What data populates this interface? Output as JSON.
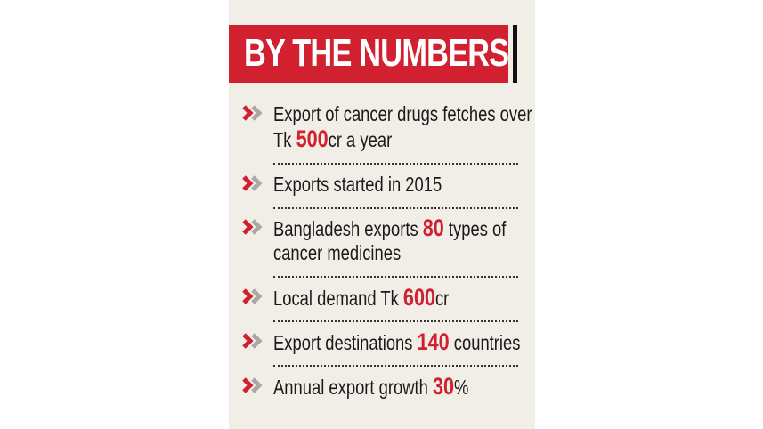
{
  "title": "BY THE NUMBERS",
  "colors": {
    "accent": "#d1202f",
    "background": "#f1eee8",
    "chevron_secondary": "#a8a8a8"
  },
  "items": [
    {
      "lines": [
        {
          "pre": "Export of cancer drugs fetches over",
          "num": "",
          "post": ""
        },
        {
          "pre": "Tk ",
          "num": "500",
          "post": "cr a year"
        }
      ]
    },
    {
      "lines": [
        {
          "pre": "Exports started in 2015",
          "num": "",
          "post": ""
        }
      ]
    },
    {
      "lines": [
        {
          "pre": "Bangladesh exports ",
          "num": "80",
          "post": " types of"
        },
        {
          "pre": "cancer medicines",
          "num": "",
          "post": ""
        }
      ]
    },
    {
      "lines": [
        {
          "pre": "Local demand Tk ",
          "num": "600",
          "post": "cr"
        }
      ]
    },
    {
      "lines": [
        {
          "pre": "Export destinations ",
          "num": "140",
          "post": " countries"
        }
      ]
    },
    {
      "lines": [
        {
          "pre": "Annual export growth ",
          "num": "30",
          "post": "%"
        }
      ]
    }
  ]
}
